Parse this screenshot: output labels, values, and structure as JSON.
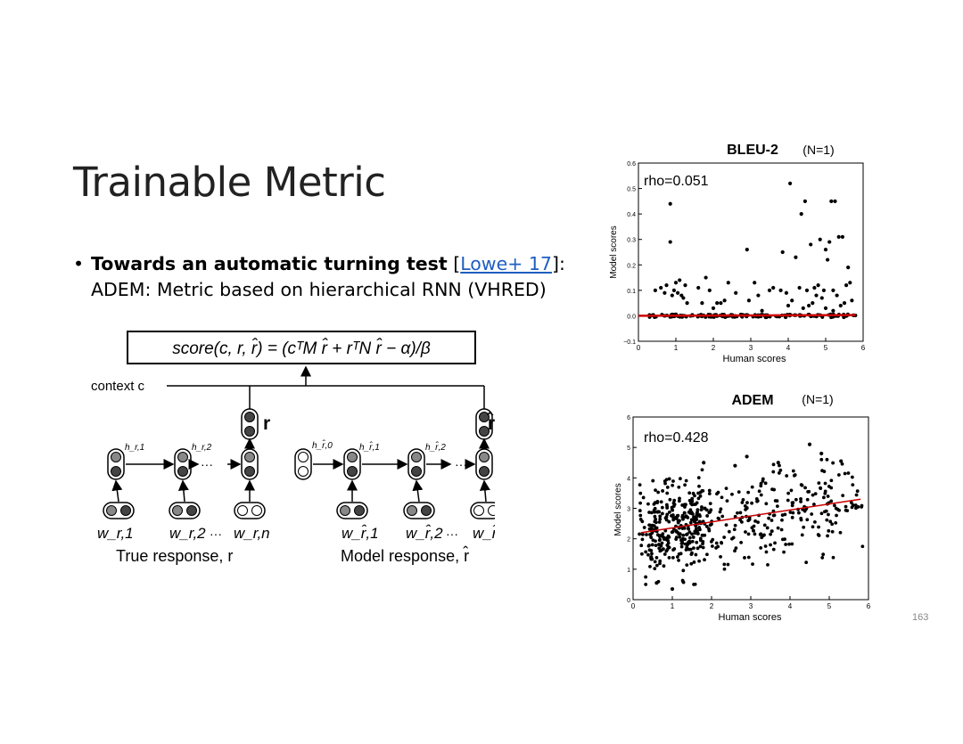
{
  "slide": {
    "title": "Trainable Metric",
    "bullet": {
      "bold_text": "Towards an automatic turning test",
      "bracket_open": "[",
      "link_text": "Lowe+ 17",
      "bracket_close": "]:",
      "line2": "ADEM: Metric based on hierarchical RNN (VHRED)"
    },
    "page_number": "163"
  },
  "diagram": {
    "formula": "score(c, r, r̂) = (cᵀM r̂ + rᵀN r̂ − α)/β",
    "context_label": "context c",
    "r_label": "r",
    "rhat_label": "r̂",
    "true_response_label": "True response, r",
    "model_response_label": "Model response, r̂",
    "hidden_true": [
      "h_r,1",
      "h_r,2"
    ],
    "hidden_model": [
      "h_r̂,0",
      "h_r̂,1",
      "h_r̂,2"
    ],
    "words_true": [
      "w_r,1",
      "w_r,2",
      "w_r,n"
    ],
    "words_model": [
      "w_r̂,1",
      "w_r̂,2",
      "w_r̂,n"
    ],
    "ellipsis": "···"
  },
  "chart_data": [
    {
      "type": "scatter",
      "title": "BLEU-2",
      "subtitle": "(N=1)",
      "annotation": "rho=0.051",
      "xlabel": "Human scores",
      "ylabel": "Model scores",
      "xlim": [
        0,
        6
      ],
      "ylim": [
        -0.1,
        0.6
      ],
      "xticks": [
        "0",
        "1",
        "2",
        "3",
        "4",
        "5",
        "6"
      ],
      "yticks": [
        "−0.1",
        "0.0",
        "0.1",
        "0.2",
        "0.3",
        "0.4",
        "0.5",
        "0.6"
      ],
      "fit_line": {
        "x": [
          0,
          5.8
        ],
        "y": [
          0.0,
          0.003
        ],
        "color": "#cc0000"
      },
      "zero_cluster": {
        "x_min": 0.1,
        "x_max": 5.8,
        "count": 150,
        "y": 0.0
      },
      "points": [
        [
          0.85,
          0.44
        ],
        [
          0.85,
          0.29
        ],
        [
          0.45,
          0.1
        ],
        [
          0.6,
          0.11
        ],
        [
          0.7,
          0.09
        ],
        [
          0.75,
          0.12
        ],
        [
          0.9,
          0.08
        ],
        [
          0.95,
          0.1
        ],
        [
          1.0,
          0.13
        ],
        [
          1.05,
          0.09
        ],
        [
          1.1,
          0.14
        ],
        [
          1.15,
          0.08
        ],
        [
          1.2,
          0.07
        ],
        [
          1.25,
          0.12
        ],
        [
          1.3,
          0.05
        ],
        [
          1.6,
          0.11
        ],
        [
          1.7,
          0.05
        ],
        [
          1.8,
          0.15
        ],
        [
          1.9,
          0.1
        ],
        [
          2.1,
          0.05
        ],
        [
          2.2,
          0.05
        ],
        [
          2.3,
          0.06
        ],
        [
          2.4,
          0.13
        ],
        [
          2.6,
          0.09
        ],
        [
          2.9,
          0.26
        ],
        [
          2.95,
          0.06
        ],
        [
          3.1,
          0.13
        ],
        [
          3.2,
          0.08
        ],
        [
          3.5,
          0.1
        ],
        [
          3.6,
          0.11
        ],
        [
          3.8,
          0.1
        ],
        [
          3.85,
          0.25
        ],
        [
          3.95,
          0.09
        ],
        [
          4.0,
          0.04
        ],
        [
          4.05,
          0.52
        ],
        [
          4.1,
          0.06
        ],
        [
          4.2,
          0.23
        ],
        [
          4.3,
          0.11
        ],
        [
          4.35,
          0.4
        ],
        [
          4.45,
          0.45
        ],
        [
          4.5,
          0.1
        ],
        [
          4.55,
          0.04
        ],
        [
          4.6,
          0.28
        ],
        [
          4.65,
          0.05
        ],
        [
          4.7,
          0.11
        ],
        [
          4.75,
          0.08
        ],
        [
          4.8,
          0.12
        ],
        [
          4.85,
          0.3
        ],
        [
          4.9,
          0.07
        ],
        [
          4.95,
          0.1
        ],
        [
          5.0,
          0.26
        ],
        [
          5.05,
          0.22
        ],
        [
          5.1,
          0.29
        ],
        [
          5.15,
          0.45
        ],
        [
          5.2,
          0.1
        ],
        [
          5.25,
          0.45
        ],
        [
          5.3,
          0.08
        ],
        [
          5.35,
          0.31
        ],
        [
          5.4,
          0.04
        ],
        [
          5.45,
          0.31
        ],
        [
          5.5,
          0.05
        ],
        [
          5.55,
          0.12
        ],
        [
          5.6,
          0.19
        ],
        [
          5.65,
          0.13
        ],
        [
          5.7,
          0.06
        ],
        [
          5.0,
          0.03
        ],
        [
          5.2,
          0.02
        ],
        [
          4.4,
          0.03
        ],
        [
          3.3,
          0.02
        ],
        [
          2.0,
          0.03
        ]
      ]
    },
    {
      "type": "scatter",
      "title": "ADEM",
      "subtitle": "(N=1)",
      "annotation": "rho=0.428",
      "xlabel": "Human scores",
      "ylabel": "Model scores",
      "xlim": [
        0,
        6
      ],
      "ylim": [
        0,
        6
      ],
      "xticks": [
        "0",
        "1",
        "2",
        "3",
        "4",
        "5",
        "6"
      ],
      "yticks": [
        "0",
        "1",
        "2",
        "3",
        "4",
        "5",
        "6"
      ],
      "fit_line": {
        "x": [
          0.2,
          5.8
        ],
        "y": [
          2.2,
          3.3
        ],
        "color": "#cc0000"
      },
      "random_cloud": {
        "count": 560,
        "x_min": 0.15,
        "x_max": 5.85,
        "slope": 0.19,
        "intercept": 2.2,
        "spread": 1.15,
        "seed": 7
      },
      "points": [
        [
          4.5,
          5.1
        ],
        [
          1.0,
          0.35
        ],
        [
          0.6,
          0.55
        ],
        [
          2.9,
          4.7
        ],
        [
          3.7,
          4.5
        ],
        [
          4.8,
          4.8
        ],
        [
          1.8,
          4.5
        ],
        [
          2.6,
          4.4
        ],
        [
          5.3,
          4.55
        ]
      ]
    }
  ]
}
